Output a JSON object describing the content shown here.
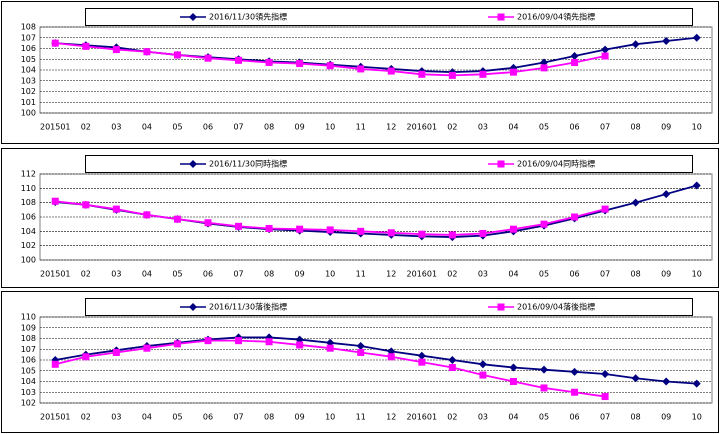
{
  "chart_data": [
    {
      "type": "line",
      "categories": [
        "201501",
        "02",
        "03",
        "04",
        "05",
        "06",
        "07",
        "08",
        "09",
        "10",
        "11",
        "12",
        "201601",
        "02",
        "03",
        "04",
        "05",
        "06",
        "07",
        "08",
        "09",
        "10"
      ],
      "series": [
        {
          "name": "2016/11/30領先指標",
          "color": "#000080",
          "marker": "diamond",
          "values": [
            106.5,
            106.3,
            106.1,
            105.7,
            105.4,
            105.2,
            105.0,
            104.8,
            104.7,
            104.5,
            104.3,
            104.1,
            103.9,
            103.8,
            103.9,
            104.2,
            104.7,
            105.3,
            105.9,
            106.4,
            106.7,
            107.0
          ]
        },
        {
          "name": "2016/09/04領先指標",
          "color": "#ff00ff",
          "marker": "square",
          "values": [
            106.5,
            106.2,
            105.9,
            105.7,
            105.4,
            105.1,
            104.9,
            104.7,
            104.6,
            104.4,
            104.1,
            103.9,
            103.6,
            103.5,
            103.6,
            103.8,
            104.2,
            104.7,
            105.3,
            null,
            null,
            null
          ]
        }
      ],
      "ylim": [
        100,
        108
      ],
      "yticks": [
        100,
        101,
        102,
        103,
        104,
        105,
        106,
        107,
        108
      ],
      "grid": true
    },
    {
      "type": "line",
      "categories": [
        "201501",
        "02",
        "03",
        "04",
        "05",
        "06",
        "07",
        "08",
        "09",
        "10",
        "11",
        "12",
        "201601",
        "02",
        "03",
        "04",
        "05",
        "06",
        "07",
        "08",
        "09",
        "10"
      ],
      "series": [
        {
          "name": "2016/11/30同時指標",
          "color": "#000080",
          "marker": "diamond",
          "values": [
            108.1,
            107.7,
            107.0,
            106.3,
            105.7,
            105.1,
            104.6,
            104.3,
            104.1,
            103.9,
            103.7,
            103.5,
            103.3,
            103.2,
            103.4,
            104.0,
            104.8,
            105.8,
            106.9,
            108.0,
            109.2,
            110.4
          ]
        },
        {
          "name": "2016/09/04同時指標",
          "color": "#ff00ff",
          "marker": "square",
          "values": [
            108.2,
            107.7,
            107.1,
            106.3,
            105.7,
            105.2,
            104.7,
            104.4,
            104.3,
            104.2,
            104.0,
            103.8,
            103.6,
            103.5,
            103.7,
            104.3,
            105.0,
            106.0,
            107.1,
            null,
            null,
            null
          ]
        }
      ],
      "ylim": [
        100,
        112
      ],
      "yticks": [
        100,
        102,
        104,
        106,
        108,
        110,
        112
      ],
      "grid": true
    },
    {
      "type": "line",
      "categories": [
        "201501",
        "02",
        "03",
        "04",
        "05",
        "06",
        "07",
        "08",
        "09",
        "10",
        "11",
        "12",
        "201601",
        "02",
        "03",
        "04",
        "05",
        "06",
        "07",
        "08",
        "09",
        "10"
      ],
      "series": [
        {
          "name": "2016/11/30落後指標",
          "color": "#000080",
          "marker": "diamond",
          "values": [
            106.0,
            106.5,
            106.9,
            107.3,
            107.6,
            107.9,
            108.1,
            108.1,
            107.9,
            107.6,
            107.3,
            106.8,
            106.4,
            106.0,
            105.6,
            105.3,
            105.1,
            104.9,
            104.7,
            104.3,
            104.0,
            103.8
          ]
        },
        {
          "name": "2016/09/04落後指標",
          "color": "#ff00ff",
          "marker": "square",
          "values": [
            105.6,
            106.3,
            106.7,
            107.1,
            107.5,
            107.8,
            107.8,
            107.7,
            107.4,
            107.1,
            106.7,
            106.3,
            105.8,
            105.3,
            104.6,
            104.0,
            103.4,
            103.0,
            102.6,
            null,
            null,
            null
          ]
        }
      ],
      "ylim": [
        102,
        110
      ],
      "yticks": [
        102,
        103,
        104,
        105,
        106,
        107,
        108,
        109,
        110
      ],
      "grid": true
    }
  ]
}
